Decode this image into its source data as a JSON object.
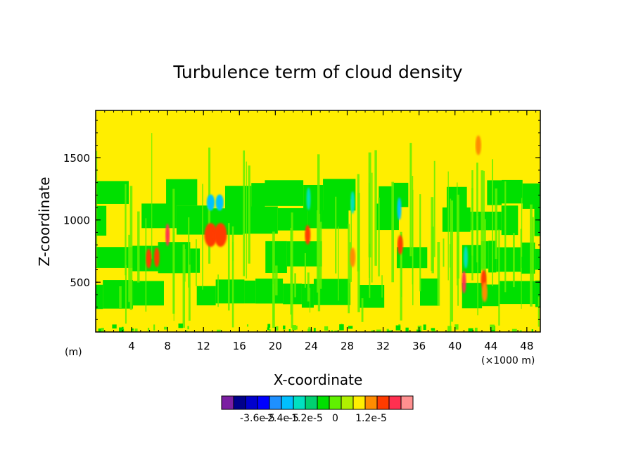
{
  "chart_data": {
    "type": "heatmap",
    "title": "Turbulence term of cloud density",
    "xlabel": "X-coordinate",
    "ylabel": "Z-coordinate",
    "x_unit_label": "(m)",
    "x_scale_label": "(×1000 m)",
    "xlim": [
      0,
      49.5
    ],
    "ylim": [
      100,
      1880
    ],
    "x_ticks": [
      4,
      8,
      12,
      16,
      20,
      24,
      28,
      32,
      36,
      40,
      44,
      48
    ],
    "y_ticks": [
      500,
      1000,
      1500
    ],
    "grid": false,
    "background_level": 0,
    "bands": [
      {
        "z": [
          300,
          500
        ],
        "level": -3
      },
      {
        "z": [
          600,
          800
        ],
        "level": -3
      },
      {
        "z": [
          900,
          1100
        ],
        "level": -3
      },
      {
        "z": [
          1100,
          1300
        ],
        "level": -3
      }
    ],
    "features": [
      {
        "x": 12.9,
        "z": 880,
        "level": 3
      },
      {
        "x": 12.8,
        "z": 880,
        "level": 2
      },
      {
        "x": 13.8,
        "z": 880,
        "level": 3
      },
      {
        "x": 13.9,
        "z": 880,
        "level": 2
      },
      {
        "x": 12.8,
        "z": 1140,
        "level": -5
      },
      {
        "x": 12.8,
        "z": 1140,
        "level": -6
      },
      {
        "x": 13.8,
        "z": 1140,
        "level": -5
      },
      {
        "x": 13.8,
        "z": 1140,
        "level": -6
      },
      {
        "x": 8.0,
        "z": 880,
        "level": 3
      },
      {
        "x": 6.8,
        "z": 700,
        "level": 2
      },
      {
        "x": 5.9,
        "z": 690,
        "level": 2
      },
      {
        "x": 23.6,
        "z": 880,
        "level": 2
      },
      {
        "x": 23.7,
        "z": 1170,
        "level": -5
      },
      {
        "x": 28.6,
        "z": 700,
        "level": 1
      },
      {
        "x": 28.6,
        "z": 1140,
        "level": -5
      },
      {
        "x": 33.8,
        "z": 1090,
        "level": -6
      },
      {
        "x": 33.9,
        "z": 800,
        "level": 2
      },
      {
        "x": 41.0,
        "z": 500,
        "level": 3
      },
      {
        "x": 41.2,
        "z": 700,
        "level": -5
      },
      {
        "x": 43.2,
        "z": 520,
        "level": 2
      },
      {
        "x": 43.3,
        "z": 420,
        "level": 1
      },
      {
        "x": 42.6,
        "z": 1600,
        "level": 1
      }
    ],
    "colorbar": {
      "colors": [
        "#7b1fa2",
        "#00008b",
        "#0000cd",
        "#0000ff",
        "#1e90ff",
        "#00c0ff",
        "#00e0c0",
        "#00d070",
        "#00e000",
        "#60f000",
        "#b0f000",
        "#ffee00",
        "#ff8c00",
        "#ff3b00",
        "#ff3050",
        "#ff9090"
      ],
      "tick_labels": [
        "-3.6e-5",
        "-2.4e-5",
        "-1.2e-5",
        "0",
        "1.2e-5"
      ]
    }
  }
}
